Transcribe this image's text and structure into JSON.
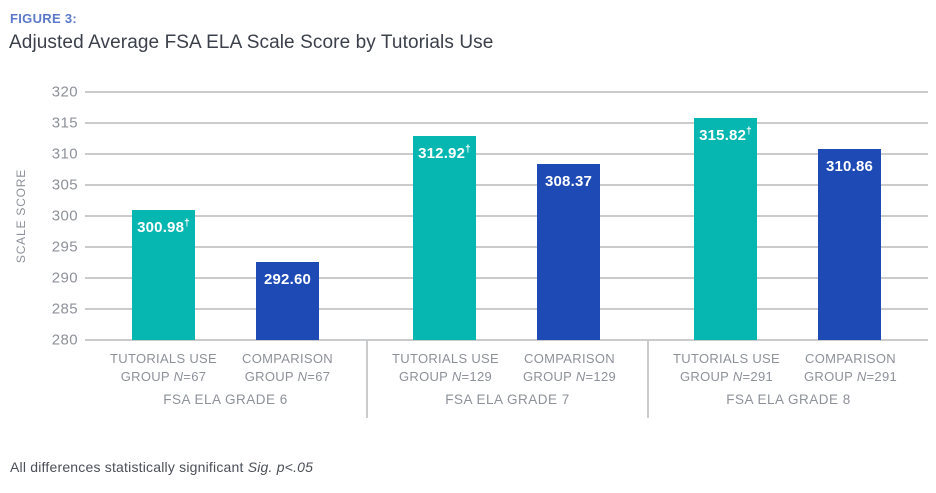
{
  "figure_label": "FIGURE 3:",
  "title": "Adjusted Average FSA ELA Scale Score by Tutorials Use",
  "footnote": {
    "text": "All differences statistically significant ",
    "italic_text": "Sig. p<.05"
  },
  "colors": {
    "tutorials_bar": "#06b6b0",
    "comparison_bar": "#1d4ab5",
    "figure_label_text": "#5b79c8",
    "title_text": "#3b404a",
    "axis_text": "#8d9199",
    "gridline": "#c9cbcd",
    "value_label_text": "#ffffff"
  },
  "chart_data": {
    "type": "bar",
    "title": "Adjusted Average FSA ELA Scale Score by Tutorials Use",
    "ylabel": "SCALE SCORE",
    "ylim": [
      280,
      320
    ],
    "ytick_step": 5,
    "grid": true,
    "dagger_symbol": "†",
    "series_legend": [
      {
        "key": "tutorials",
        "name": "Tutorials Use Group"
      },
      {
        "key": "comparison",
        "name": "Comparison Group"
      }
    ],
    "groups": [
      {
        "category": "FSA ELA GRADE 6",
        "bars": [
          {
            "series": "tutorials",
            "label_line1": "TUTORIALS USE",
            "label_line2_prefix": "GROUP ",
            "label_line2_n": "N",
            "label_line2_suffix": "=67",
            "value": 300.98,
            "value_display": "300.98",
            "dagger": true
          },
          {
            "series": "comparison",
            "label_line1": "COMPARISON",
            "label_line2_prefix": "GROUP ",
            "label_line2_n": "N",
            "label_line2_suffix": "=67",
            "value": 292.6,
            "value_display": "292.60",
            "dagger": false
          }
        ]
      },
      {
        "category": "FSA ELA GRADE 7",
        "bars": [
          {
            "series": "tutorials",
            "label_line1": "TUTORIALS USE",
            "label_line2_prefix": "GROUP ",
            "label_line2_n": "N",
            "label_line2_suffix": "=129",
            "value": 312.92,
            "value_display": "312.92",
            "dagger": true
          },
          {
            "series": "comparison",
            "label_line1": "COMPARISON",
            "label_line2_prefix": "GROUP ",
            "label_line2_n": "N",
            "label_line2_suffix": "=129",
            "value": 308.37,
            "value_display": "308.37",
            "dagger": false
          }
        ]
      },
      {
        "category": "FSA ELA GRADE 8",
        "bars": [
          {
            "series": "tutorials",
            "label_line1": "TUTORIALS USE",
            "label_line2_prefix": "GROUP ",
            "label_line2_n": "N",
            "label_line2_suffix": "=291",
            "value": 315.82,
            "value_display": "315.82",
            "dagger": true
          },
          {
            "series": "comparison",
            "label_line1": "COMPARISON",
            "label_line2_prefix": "GROUP ",
            "label_line2_n": "N",
            "label_line2_suffix": "=291",
            "value": 310.86,
            "value_display": "310.86",
            "dagger": false
          }
        ]
      }
    ]
  }
}
